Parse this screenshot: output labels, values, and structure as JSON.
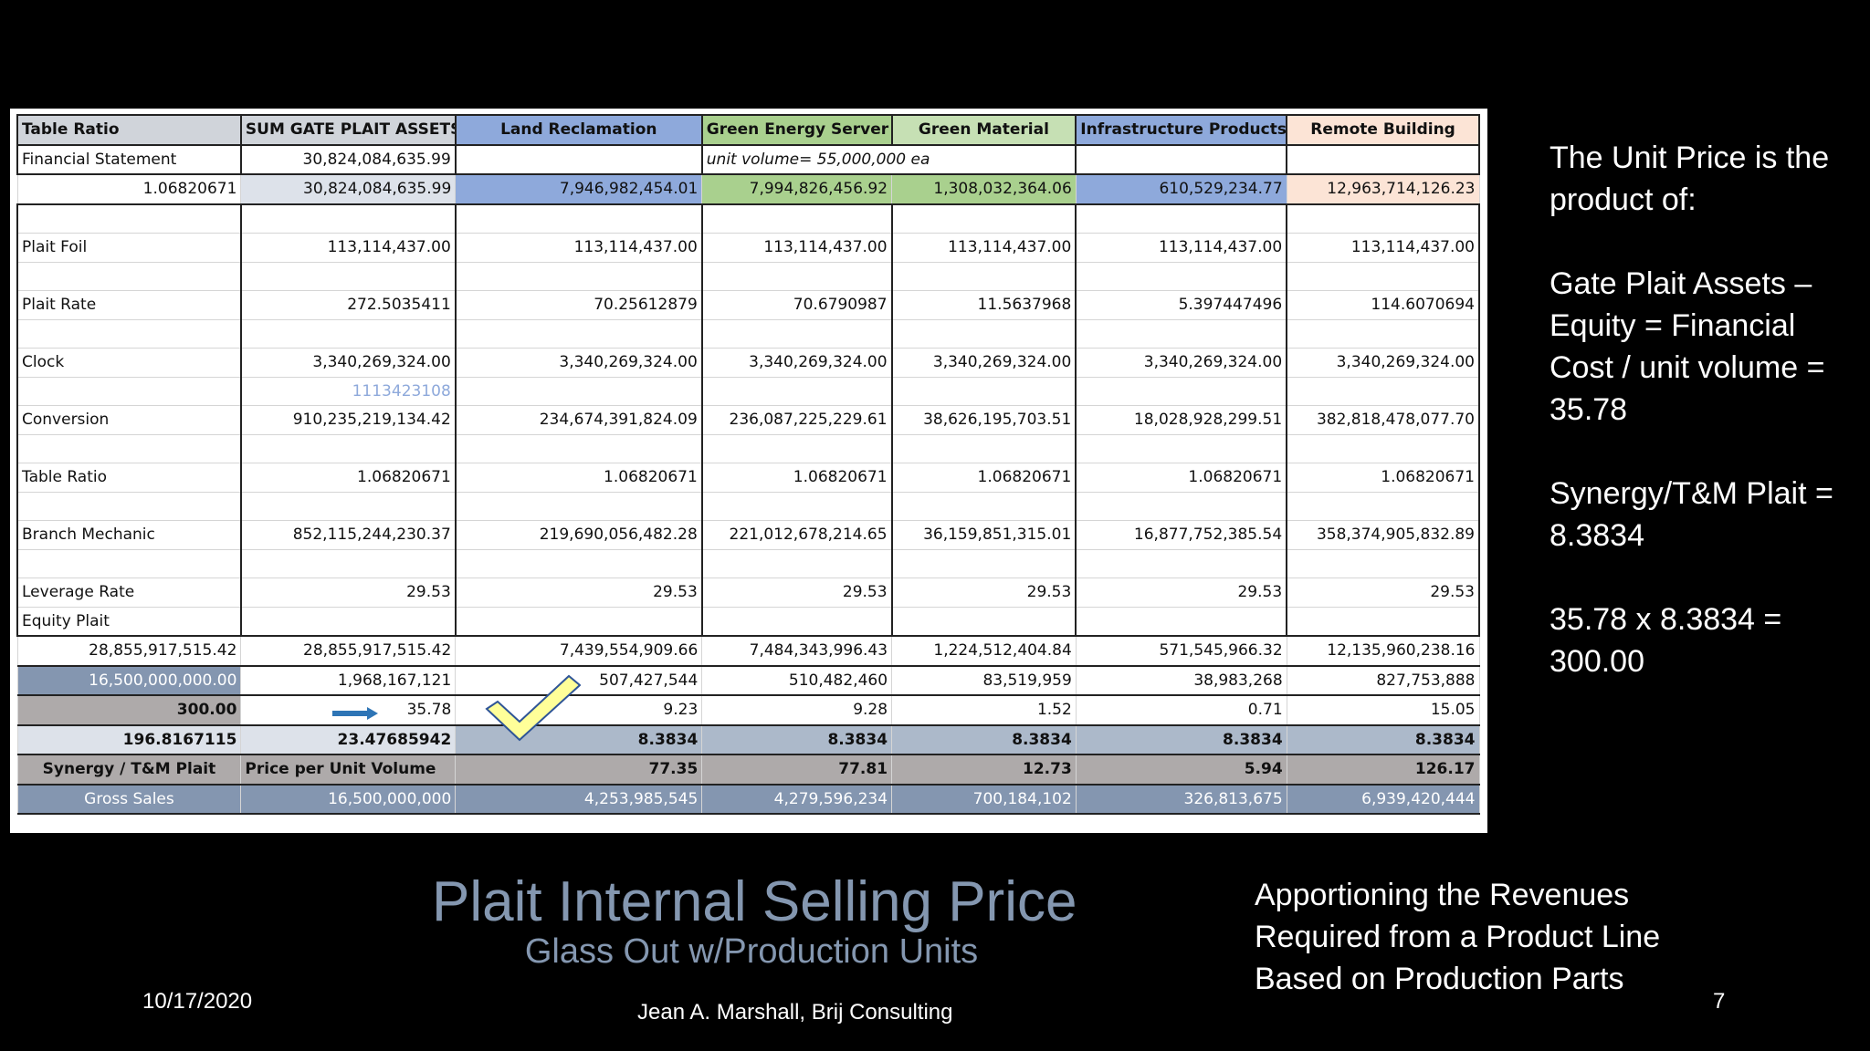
{
  "table": {
    "headers": [
      "Table Ratio",
      "SUM GATE PLAIT ASSETS",
      "Land Reclamation",
      "Green Energy Server",
      "Green Material",
      "Infrastructure Products",
      "Remote Building"
    ],
    "fin_statement": {
      "label": "Financial Statement",
      "sum": "30,824,084,635.99",
      "note": "unit volume= 55,000,000 ea"
    },
    "assets_row": [
      "1.06820671",
      "30,824,084,635.99",
      "7,946,982,454.01",
      "7,994,826,456.92",
      "1,308,032,364.06",
      "610,529,234.77",
      "12,963,714,126.23"
    ],
    "plait_foil": {
      "label": "Plait Foil",
      "values": [
        "113,114,437.00",
        "113,114,437.00",
        "113,114,437.00",
        "113,114,437.00",
        "113,114,437.00",
        "113,114,437.00"
      ]
    },
    "plait_rate": {
      "label": "Plait Rate",
      "values": [
        "272.5035411",
        "70.25612879",
        "70.6790987",
        "11.5637968",
        "5.397447496",
        "114.6070694"
      ]
    },
    "clock": {
      "label": "Clock",
      "values": [
        "3,340,269,324.00",
        "3,340,269,324.00",
        "3,340,269,324.00",
        "3,340,269,324.00",
        "3,340,269,324.00",
        "3,340,269,324.00"
      ],
      "sub": "1113423108"
    },
    "conversion": {
      "label": "Conversion",
      "values": [
        "910,235,219,134.42",
        "234,674,391,824.09",
        "236,087,225,229.61",
        "38,626,195,703.51",
        "18,028,928,299.51",
        "382,818,478,077.70"
      ]
    },
    "table_ratio": {
      "label": "Table Ratio",
      "values": [
        "1.06820671",
        "1.06820671",
        "1.06820671",
        "1.06820671",
        "1.06820671",
        "1.06820671"
      ]
    },
    "branch": {
      "label": "Branch Mechanic",
      "values": [
        "852,115,244,230.37",
        "219,690,056,482.28",
        "221,012,678,214.65",
        "36,159,851,315.01",
        "16,877,752,385.54",
        "358,374,905,832.89"
      ]
    },
    "leverage": {
      "label": "Leverage Rate",
      "values": [
        "29.53",
        "29.53",
        "29.53",
        "29.53",
        "29.53",
        "29.53"
      ]
    },
    "equity_label": "Equity Plait",
    "equity_row": [
      "28,855,917,515.42",
      "28,855,917,515.42",
      "7,439,554,909.66",
      "7,484,343,996.43",
      "1,224,512,404.84",
      "571,545,966.32",
      "12,135,960,238.16"
    ],
    "units_row": [
      "16,500,000,000.00",
      "1,968,167,121",
      "507,427,544",
      "510,482,460",
      "83,519,959",
      "38,983,268",
      "827,753,888"
    ],
    "price_row": [
      "300.00",
      "35.78",
      "9.23",
      "9.28",
      "1.52",
      "0.71",
      "15.05"
    ],
    "synergy_row": [
      "196.8167115",
      "23.47685942",
      "8.3834",
      "8.3834",
      "8.3834",
      "8.3834",
      "8.3834"
    ],
    "ppu_row": [
      "Synergy / T&M Plait",
      "Price per Unit Volume",
      "77.35",
      "77.81",
      "12.73",
      "5.94",
      "126.17"
    ],
    "gross_row": [
      "Gross Sales",
      "16,500,000,000",
      "4,253,985,545",
      "4,279,596,234",
      "700,184,102",
      "326,813,675",
      "6,939,420,444"
    ]
  },
  "sidebar": {
    "p1": "The Unit Price is the product of:",
    "p2": "Gate Plait Assets – Equity = Financial Cost / unit volume = 35.78",
    "p3": "Synergy/T&M Plait = 8.3834",
    "p4": "35.78 x 8.3834 = 300.00"
  },
  "footer": {
    "title": "Plait Internal Selling Price",
    "subtitle": "Glass Out w/Production Units",
    "apportion": "Apportioning the Revenues Required from a Product Line Based on Production Parts",
    "date": "10/17/2020",
    "author": "Jean A. Marshall, Brij Consulting",
    "page": "7"
  },
  "colors": {
    "title": "#8497b0",
    "check": "#ffff99",
    "arrow": "#2e75b6"
  }
}
